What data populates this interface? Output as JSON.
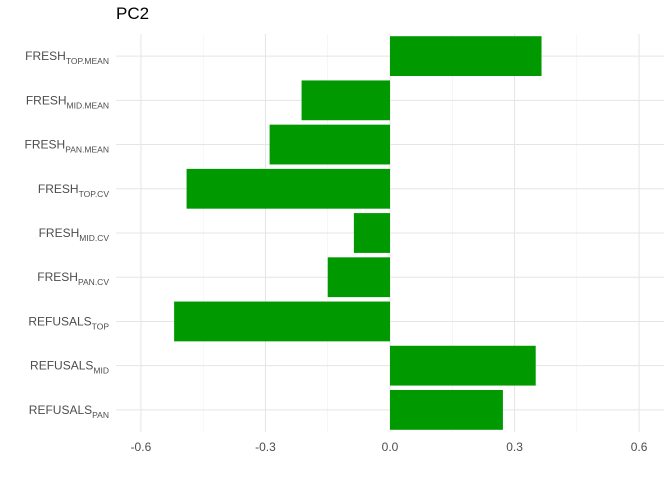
{
  "chart_data": {
    "type": "bar",
    "orientation": "horizontal",
    "title": "PC2",
    "xlabel": "",
    "ylabel": "",
    "xlim": [
      -0.66,
      0.66
    ],
    "grid": true,
    "legend": "none",
    "bar_color": "#009900",
    "categories": [
      {
        "base": "FRESH",
        "sub": "TOP.MEAN"
      },
      {
        "base": "FRESH",
        "sub": "MID.MEAN"
      },
      {
        "base": "FRESH",
        "sub": "PAN.MEAN"
      },
      {
        "base": "FRESH",
        "sub": "TOP.CV"
      },
      {
        "base": "FRESH",
        "sub": "MID.CV"
      },
      {
        "base": "FRESH",
        "sub": "PAN.CV"
      },
      {
        "base": "REFUSALS",
        "sub": "TOP"
      },
      {
        "base": "REFUSALS",
        "sub": "MID"
      },
      {
        "base": "REFUSALS",
        "sub": "PAN"
      }
    ],
    "values": [
      0.365,
      -0.213,
      -0.29,
      -0.49,
      -0.087,
      -0.15,
      -0.52,
      0.351,
      0.272
    ],
    "xticks": [
      -0.6,
      -0.3,
      0.0,
      0.3,
      0.6
    ],
    "xtick_labels": [
      "-0.6",
      "-0.3",
      "0.0",
      "0.3",
      "0.6"
    ]
  }
}
